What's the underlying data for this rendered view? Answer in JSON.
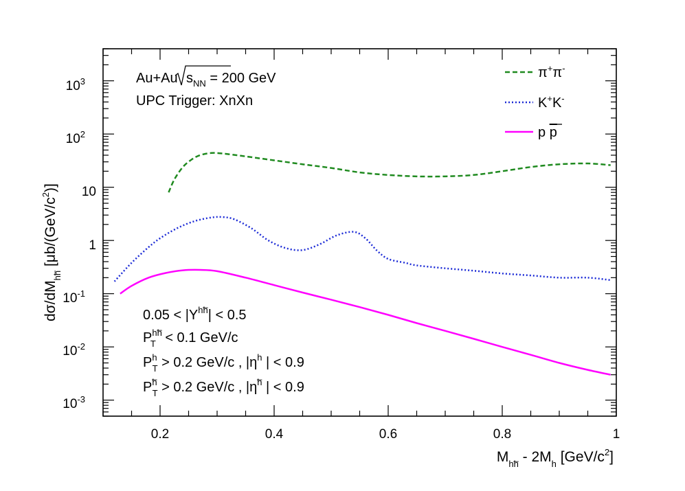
{
  "chart_data": {
    "type": "line",
    "y_scale": "log",
    "xlim": [
      0.1,
      1.0
    ],
    "ylim": [
      0.0005,
      4000
    ],
    "x_ticks": [
      0.2,
      0.4,
      0.6,
      0.8,
      1.0
    ],
    "x_tick_labels": [
      "0.2",
      "0.4",
      "0.6",
      "0.8",
      "1"
    ],
    "y_ticks": [
      {
        "value": 0.001,
        "base": "10",
        "exp": "-3"
      },
      {
        "value": 0.01,
        "base": "10",
        "exp": "-2"
      },
      {
        "value": 0.1,
        "base": "10",
        "exp": "-1"
      },
      {
        "value": 1,
        "base": "1",
        "exp": ""
      },
      {
        "value": 10,
        "base": "10",
        "exp": ""
      },
      {
        "value": 100,
        "base": "10",
        "exp": "2"
      },
      {
        "value": 1000,
        "base": "10",
        "exp": "3"
      }
    ],
    "xlabel": {
      "main": "M",
      "sub1": "hh̅",
      "mid": " - 2M",
      "sub2": "h",
      "rest": " [GeV/c",
      "sup": "2",
      "end": "]"
    },
    "ylabel": {
      "main": "dσ/dM",
      "sub": "hh̅",
      "rest": " [μb/(GeV/c",
      "sup": "2",
      "end": ")]"
    },
    "annotations": {
      "collision": "Au+Au",
      "sqrt_s": "s",
      "sqrt_s_sub": "NN",
      "energy": " = 200 GeV",
      "trigger": "UPC  Trigger: XnXn",
      "cut1_prefix": "0.05 < |Y",
      "cut1_sup": "hh̅",
      "cut1_suffix": "| < 0.5",
      "cut2_main": "P",
      "cut2_sup": "hh̅",
      "cut2_sub": "T",
      "cut2_suffix": " < 0.1 GeV/c",
      "cut3_main": "P",
      "cut3_sup": "h",
      "cut3_sub": "T",
      "cut3_mid": " > 0.2 GeV/c , |η",
      "cut3_sup2": "h",
      "cut3_end": " | < 0.9",
      "cut4_main": "P",
      "cut4_sup": "h̅",
      "cut4_sub": "T",
      "cut4_mid": " > 0.2 GeV/c , |η",
      "cut4_sup2": "h̅",
      "cut4_end": " | < 0.9"
    },
    "series": [
      {
        "name": "pi+pi-",
        "legend_main": "π",
        "legend_sup1": "+",
        "legend_mid": "π",
        "legend_sup2": "-",
        "color": "#1f8a1f",
        "dash": "7,4",
        "x": [
          0.215,
          0.225,
          0.24,
          0.255,
          0.27,
          0.29,
          0.31,
          0.35,
          0.4,
          0.45,
          0.5,
          0.55,
          0.6,
          0.65,
          0.7,
          0.75,
          0.8,
          0.85,
          0.9,
          0.95,
          0.99
        ],
        "y": [
          8,
          14,
          24,
          33,
          40,
          44,
          43,
          38,
          32,
          27,
          23,
          19,
          17,
          16,
          16,
          17,
          20,
          24,
          27,
          28,
          26
        ]
      },
      {
        "name": "K+K-",
        "legend_main": "K",
        "legend_sup1": "+",
        "legend_mid": "K",
        "legend_sup2": "-",
        "color": "#1c2bd6",
        "dash": "2,3",
        "x": [
          0.12,
          0.15,
          0.18,
          0.2,
          0.23,
          0.26,
          0.29,
          0.31,
          0.33,
          0.36,
          0.39,
          0.42,
          0.45,
          0.48,
          0.51,
          0.54,
          0.56,
          0.58,
          0.6,
          0.63,
          0.65,
          0.7,
          0.75,
          0.8,
          0.85,
          0.9,
          0.95,
          0.99
        ],
        "y": [
          0.17,
          0.38,
          0.75,
          1.1,
          1.7,
          2.3,
          2.7,
          2.75,
          2.5,
          1.7,
          1.0,
          0.72,
          0.66,
          0.85,
          1.25,
          1.45,
          1.1,
          0.65,
          0.45,
          0.38,
          0.34,
          0.3,
          0.27,
          0.24,
          0.22,
          0.2,
          0.2,
          0.18
        ]
      },
      {
        "name": "p pbar",
        "legend_main": "p ",
        "legend_bar": "p",
        "color": "#ff00ff",
        "dash": "",
        "x": [
          0.13,
          0.15,
          0.18,
          0.21,
          0.24,
          0.27,
          0.3,
          0.35,
          0.4,
          0.45,
          0.5,
          0.55,
          0.6,
          0.65,
          0.7,
          0.75,
          0.8,
          0.85,
          0.9,
          0.95,
          0.99
        ],
        "y": [
          0.1,
          0.14,
          0.2,
          0.245,
          0.275,
          0.28,
          0.265,
          0.2,
          0.145,
          0.105,
          0.077,
          0.056,
          0.04,
          0.028,
          0.02,
          0.0142,
          0.01,
          0.0071,
          0.005,
          0.0037,
          0.003
        ]
      }
    ]
  }
}
